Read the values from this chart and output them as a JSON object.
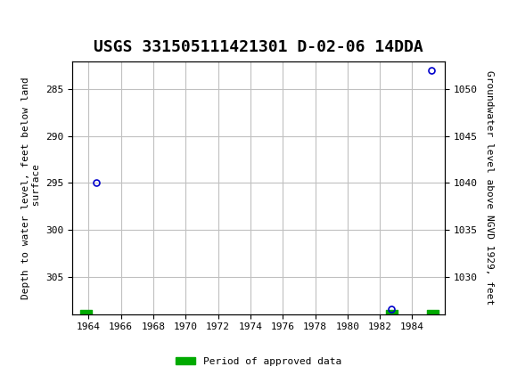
{
  "title": "USGS 331505111421301 D-02-06 14DDA",
  "title_fontsize": 13,
  "header_bg_color": "#1a6b3a",
  "plot_bg_color": "#ffffff",
  "grid_color": "#c0c0c0",
  "left_ylabel": "Depth to water level, feet below land\n surface",
  "right_ylabel": "Groundwater level above NGVD 1929, feet",
  "xlim": [
    1963,
    1986
  ],
  "xticks": [
    1964,
    1966,
    1968,
    1970,
    1972,
    1974,
    1976,
    1978,
    1980,
    1982,
    1984
  ],
  "ylim_left": [
    282,
    309
  ],
  "ylim_right": [
    1026,
    1053
  ],
  "yticks_left": [
    285,
    290,
    295,
    300,
    305
  ],
  "yticks_right": [
    1030,
    1035,
    1040,
    1045,
    1050
  ],
  "data_points": [
    {
      "year": 1964.5,
      "depth": 295.0
    },
    {
      "year": 1982.7,
      "depth": 308.5
    },
    {
      "year": 1985.2,
      "depth": 283.0
    }
  ],
  "approved_bars": [
    {
      "xstart": 1963.5,
      "xend": 1964.2
    },
    {
      "xstart": 1982.4,
      "xend": 1983.1
    },
    {
      "xstart": 1984.9,
      "xend": 1985.6
    }
  ],
  "point_color": "#0000cc",
  "point_marker": "o",
  "point_markersize": 5,
  "approved_color": "#00aa00",
  "legend_label": "Period of approved data",
  "font_family": "monospace"
}
